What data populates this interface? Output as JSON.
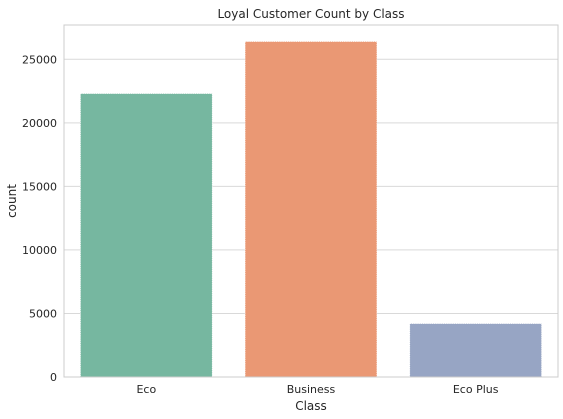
{
  "chart_data": {
    "type": "bar",
    "title": "Loyal Customer Count by Class",
    "xlabel": "Class",
    "ylabel": "count",
    "categories": [
      "Eco",
      "Business",
      "Eco Plus"
    ],
    "values": [
      22300,
      26400,
      4200
    ],
    "colors": [
      "#76b7a0",
      "#ea9874",
      "#97a5c4"
    ],
    "ylim": [
      0,
      27700
    ],
    "yticks": [
      0,
      5000,
      10000,
      15000,
      20000,
      25000
    ],
    "grid": true,
    "legend": "none"
  }
}
